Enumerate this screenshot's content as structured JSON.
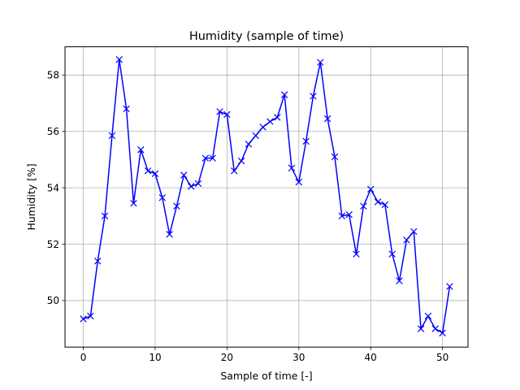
{
  "chart_data": {
    "type": "line",
    "title": "Humidity (sample of time)",
    "xlabel": "Sample of time [-]",
    "ylabel": "Humidity [%]",
    "xlim": [
      -2.55,
      53.55
    ],
    "ylim": [
      48.35,
      59.0
    ],
    "xticks": [
      0,
      10,
      20,
      30,
      40,
      50
    ],
    "yticks": [
      50,
      52,
      54,
      56,
      58
    ],
    "grid": true,
    "series": [
      {
        "color": "#0000ff",
        "marker": "x",
        "x": [
          0,
          1,
          2,
          3,
          4,
          5,
          6,
          7,
          8,
          9,
          10,
          11,
          12,
          13,
          14,
          15,
          16,
          17,
          18,
          19,
          20,
          21,
          22,
          23,
          24,
          25,
          26,
          27,
          28,
          29,
          30,
          31,
          32,
          33,
          34,
          35,
          36,
          37,
          38,
          39,
          40,
          41,
          42,
          43,
          44,
          45,
          46,
          47,
          48,
          49,
          50,
          51
        ],
        "values": [
          49.35,
          49.45,
          51.4,
          53.0,
          55.85,
          58.55,
          56.8,
          53.45,
          55.35,
          54.6,
          54.5,
          53.65,
          52.35,
          53.35,
          54.45,
          54.05,
          54.15,
          55.05,
          55.05,
          56.7,
          56.6,
          54.6,
          54.95,
          55.55,
          55.85,
          56.15,
          56.35,
          56.5,
          57.3,
          54.7,
          54.2,
          55.65,
          57.25,
          58.45,
          56.45,
          55.1,
          53.0,
          53.05,
          51.65,
          53.35,
          53.95,
          53.5,
          53.4,
          51.65,
          50.7,
          52.15,
          52.45,
          49.0,
          49.45,
          49.0,
          48.85,
          50.5
        ]
      }
    ]
  }
}
